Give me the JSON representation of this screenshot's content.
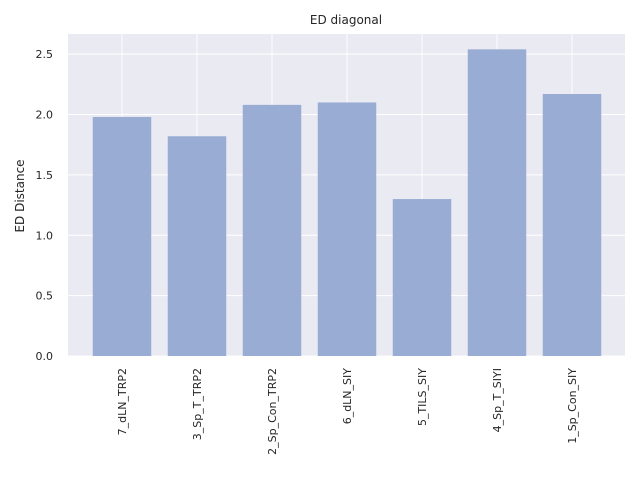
{
  "chart_data": {
    "type": "bar",
    "title": "ED diagonal",
    "xlabel": "",
    "ylabel": "ED Distance",
    "categories": [
      "7_dLN_TRP2",
      "3_Sp_T_TRP2",
      "2_Sp_Con_TRP2",
      "6_dLN_SIY",
      "5_TILS_SIY",
      "4_Sp_T_SIYI",
      "1_Sp_Con_SIY"
    ],
    "values": [
      1.98,
      1.82,
      2.08,
      2.1,
      1.3,
      2.54,
      2.17
    ],
    "yticks": [
      0.0,
      0.5,
      1.0,
      1.5,
      2.0,
      2.5
    ],
    "ytick_labels": [
      "0.0",
      "0.5",
      "1.0",
      "1.5",
      "2.0",
      "2.5"
    ],
    "ylim": [
      0,
      2.667
    ],
    "grid": true,
    "legend": "none",
    "colors": {
      "bar": "#98acd4",
      "background": "#eaeaf2",
      "grid": "#ffffff"
    }
  }
}
